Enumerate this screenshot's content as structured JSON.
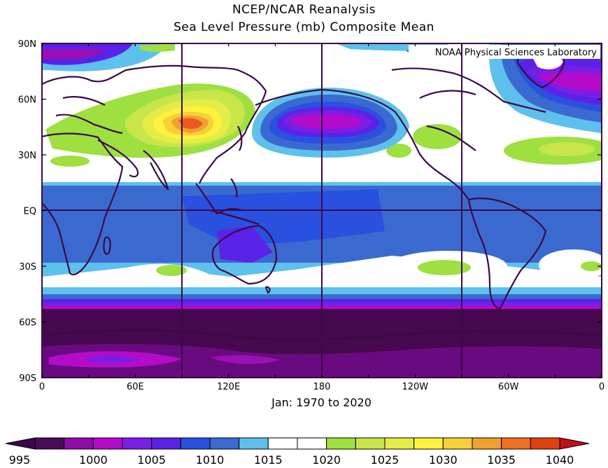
{
  "title_line1": "NCEP/NCAR Reanalysis",
  "title_line2": "Sea Level Pressure (mb) Composite Mean",
  "subtitle": "Jan: 1970 to 2020",
  "credit": "NOAA Physical Sciences Laboratory",
  "lat_labels": [
    "90N",
    "60N",
    "30N",
    "EQ",
    "30S",
    "60S",
    "90S"
  ],
  "lon_labels": [
    "0",
    "60E",
    "120E",
    "180",
    "120W",
    "60W",
    "0"
  ],
  "colorbar": {
    "labels": [
      "995",
      "1000",
      "1005",
      "1010",
      "1015",
      "1020",
      "1025",
      "1030",
      "1035",
      "1040"
    ],
    "colors": [
      "#4a0a5a",
      "#8f0ca9",
      "#b30bc9",
      "#7a1ee6",
      "#5a22e8",
      "#2a50e0",
      "#3a6ad0",
      "#5ec0ec",
      "#ffffff",
      "#ffffff",
      "#9ee040",
      "#c8e64a",
      "#e4ec48",
      "#fff23a",
      "#f6d036",
      "#f0a030",
      "#ee7020",
      "#e04010"
    ],
    "min_color": "#3c0848",
    "max_color": "#c01018"
  },
  "palette": {
    "bg_low": "#46084e",
    "purple": "#9a10b6",
    "violet": "#7c24e6",
    "blue": "#3060d8",
    "lightblue": "#5ec0ec",
    "white": "#ffffff",
    "green": "#9ee040",
    "yellow": "#fff23a",
    "orange": "#f0a030",
    "red": "#ea5a20"
  }
}
